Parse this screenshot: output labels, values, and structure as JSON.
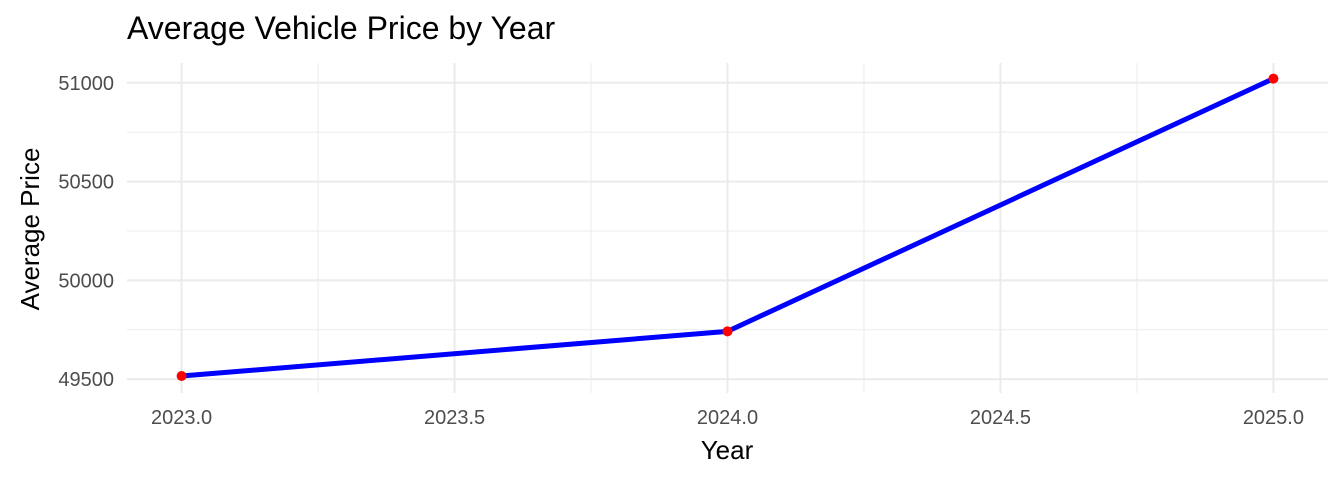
{
  "chart_data": {
    "type": "line",
    "title": "Average Vehicle Price by Year",
    "xlabel": "Year",
    "ylabel": "Average Price",
    "x": [
      2023,
      2024,
      2025
    ],
    "series": [
      {
        "values": [
          49516,
          49742,
          51021
        ]
      }
    ],
    "xlim": [
      2022.9,
      2025.1
    ],
    "ylim": [
      49430,
      51100
    ],
    "x_ticks": [
      2023.0,
      2023.5,
      2024.0,
      2024.5,
      2025.0
    ],
    "x_tick_labels": [
      "2023.0",
      "2023.5",
      "2024.0",
      "2024.5",
      "2025.0"
    ],
    "y_ticks": [
      49500,
      50000,
      50500,
      51000
    ],
    "y_tick_labels": [
      "49500",
      "50000",
      "50500",
      "51000"
    ],
    "grid": true,
    "line_color": "#0000ff",
    "point_color": "#ff0000",
    "grid_color": "#ebebeb"
  }
}
